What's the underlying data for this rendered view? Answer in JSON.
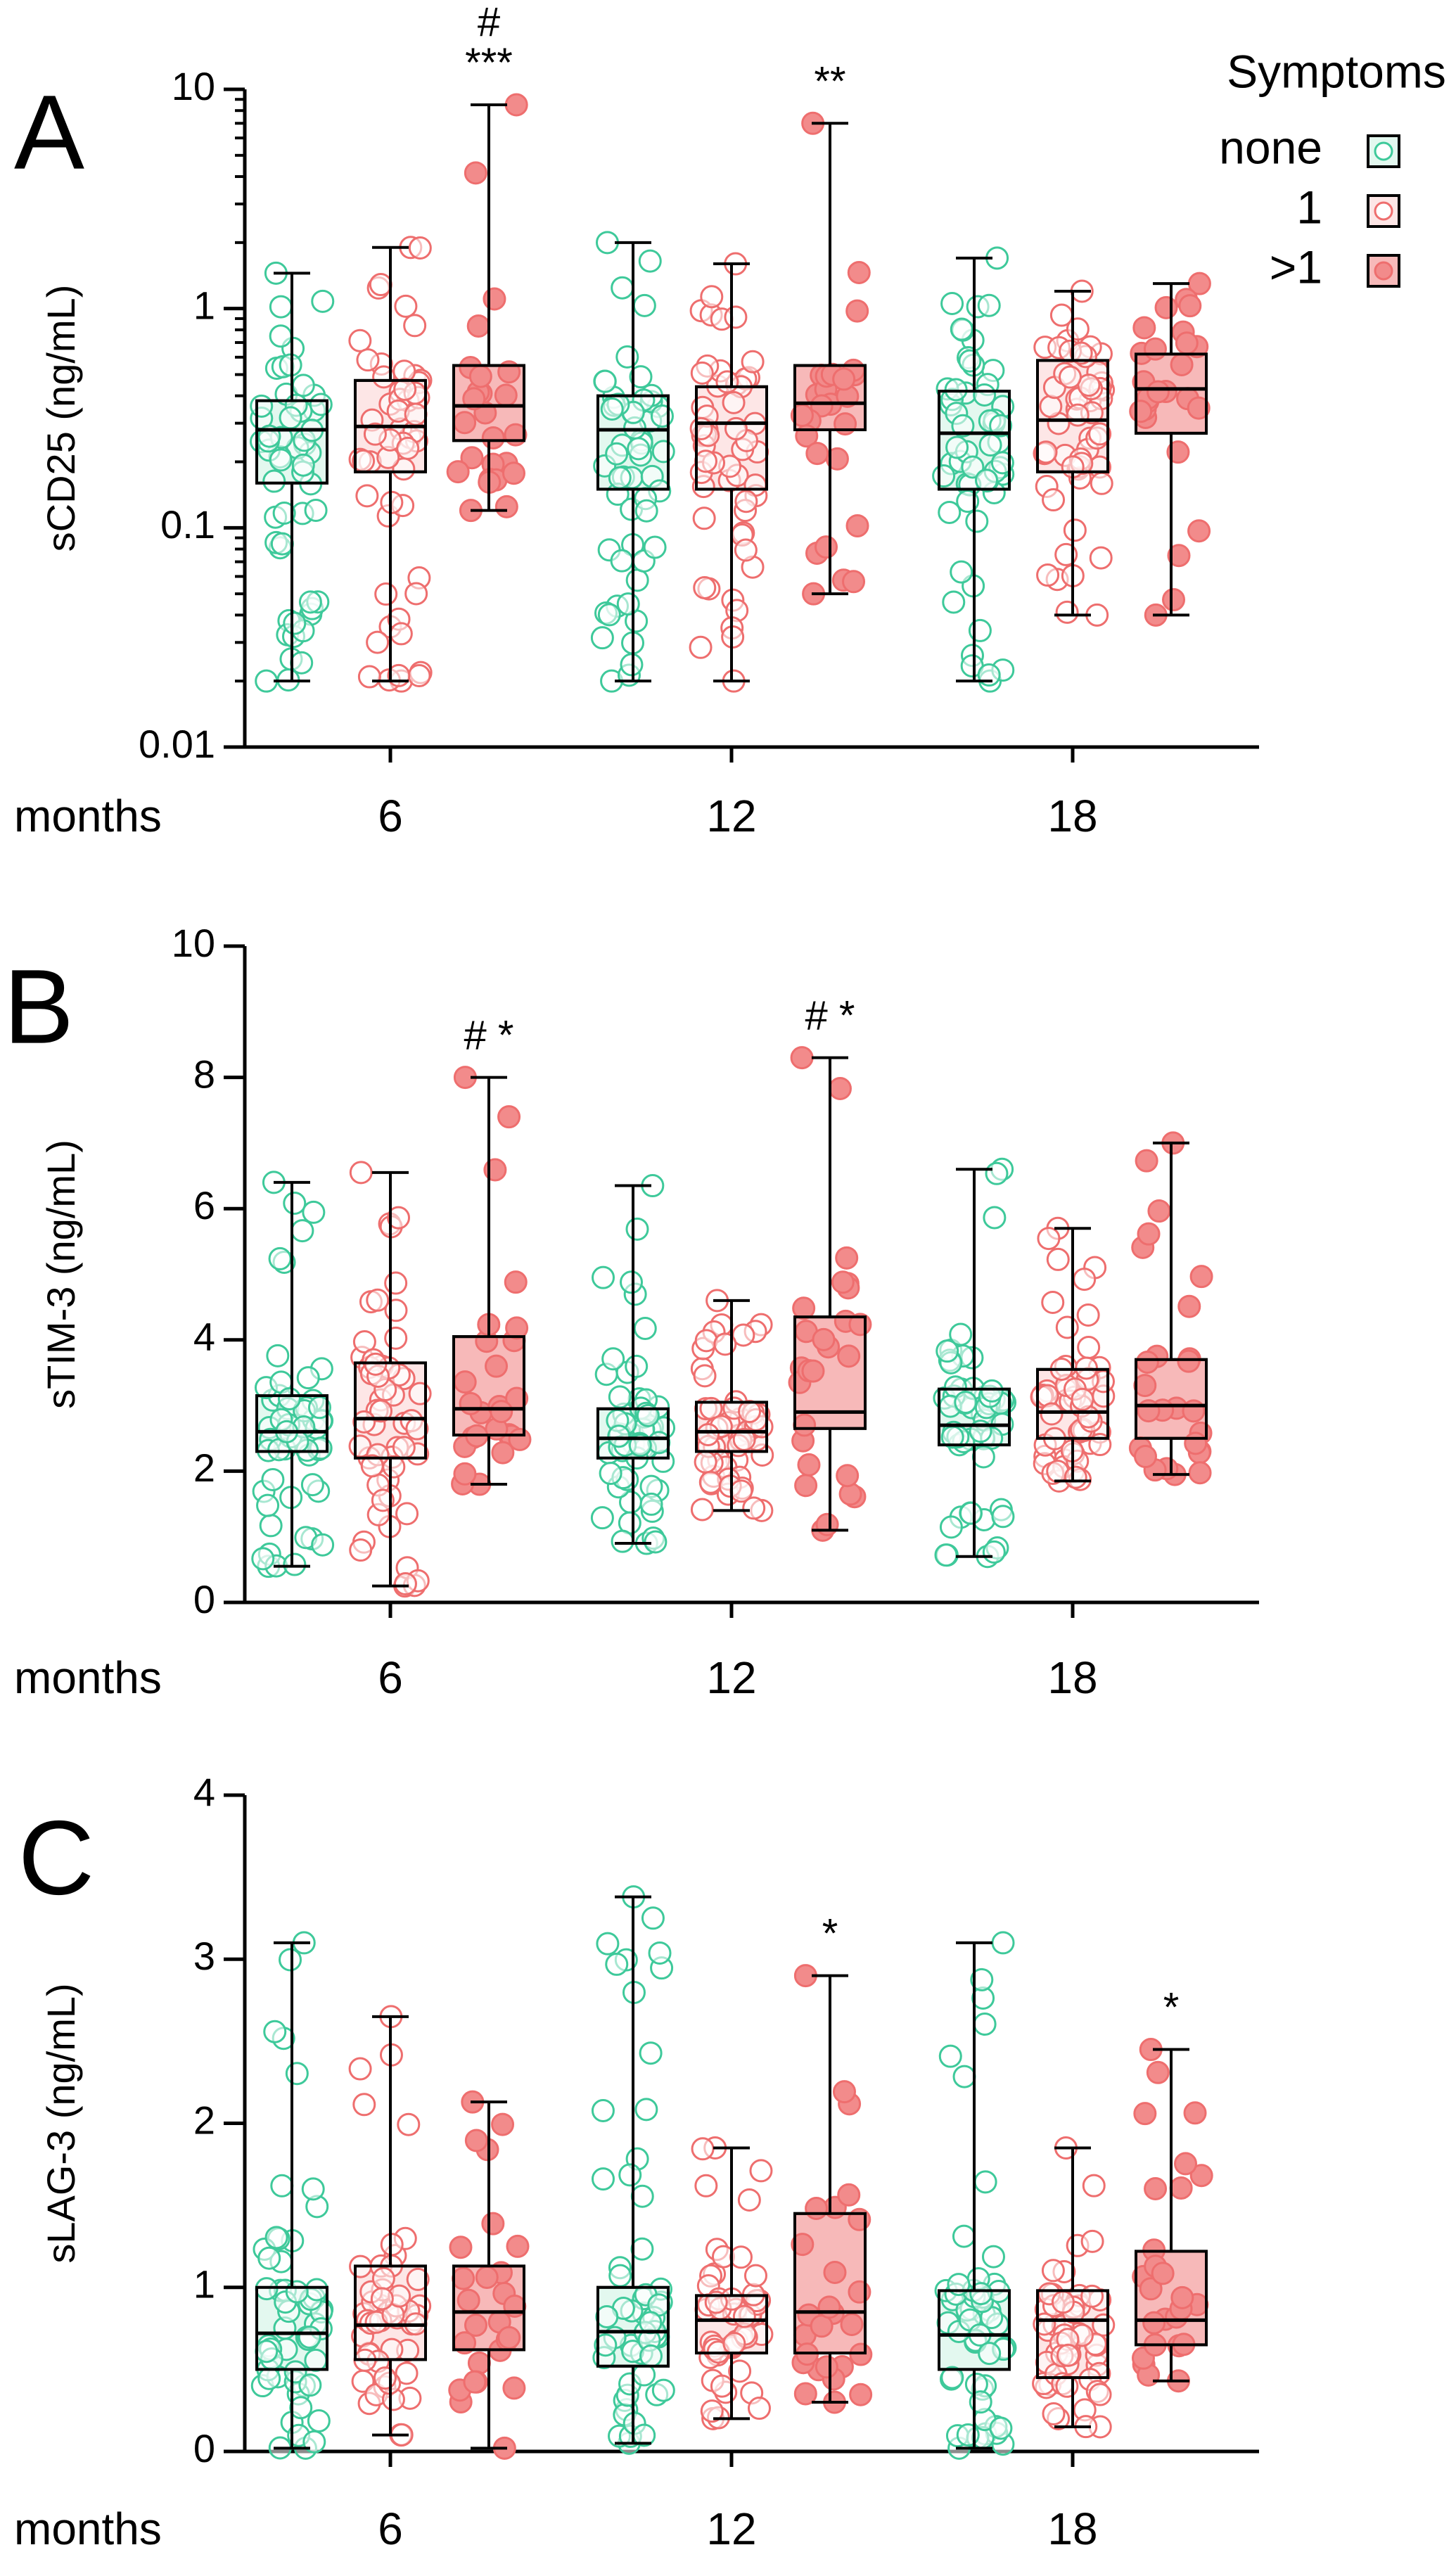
{
  "colors": {
    "none": "#3ec99a",
    "none_fill": "#e3f8ef",
    "one": "#ee6e6e",
    "one_fill": "#fde6e6",
    "many": "#ee6e6e",
    "many_fill": "#f7b9b9",
    "many_dot": "#f28b8b",
    "axis": "#000000"
  },
  "legend": {
    "title": "Symptoms",
    "entries": [
      {
        "key": "none",
        "label": "none",
        "style": "open"
      },
      {
        "key": "one",
        "label": "1",
        "style": "open"
      },
      {
        "key": "many",
        "label": ">1",
        "style": "filled"
      }
    ]
  },
  "chart_data": [
    {
      "type": "box",
      "panel_label": "A",
      "ylabel": "sCD25 (ng/mL)",
      "xlabel": "months",
      "scale": "log",
      "ylim": [
        0.01,
        10
      ],
      "yticks": [
        0.01,
        0.1,
        1,
        10
      ],
      "ytick_labels": [
        "0.01",
        "0.1",
        "1",
        "10"
      ],
      "categories": [
        "6",
        "12",
        "18"
      ],
      "series": [
        {
          "name": "none",
          "boxes": [
            {
              "min": 0.02,
              "q1": 0.16,
              "median": 0.28,
              "q3": 0.38,
              "max": 1.45
            },
            {
              "min": 0.02,
              "q1": 0.15,
              "median": 0.28,
              "q3": 0.4,
              "max": 2.0
            },
            {
              "min": 0.02,
              "q1": 0.15,
              "median": 0.27,
              "q3": 0.42,
              "max": 1.7
            }
          ]
        },
        {
          "name": "1",
          "boxes": [
            {
              "min": 0.02,
              "q1": 0.18,
              "median": 0.29,
              "q3": 0.47,
              "max": 1.9
            },
            {
              "min": 0.02,
              "q1": 0.15,
              "median": 0.3,
              "q3": 0.44,
              "max": 1.6
            },
            {
              "min": 0.04,
              "q1": 0.18,
              "median": 0.31,
              "q3": 0.58,
              "max": 1.2
            }
          ]
        },
        {
          "name": ">1",
          "boxes": [
            {
              "min": 0.12,
              "q1": 0.25,
              "median": 0.36,
              "q3": 0.55,
              "max": 8.5
            },
            {
              "min": 0.05,
              "q1": 0.28,
              "median": 0.37,
              "q3": 0.55,
              "max": 7.0
            },
            {
              "min": 0.04,
              "q1": 0.27,
              "median": 0.43,
              "q3": 0.62,
              "max": 1.3
            }
          ]
        }
      ],
      "annotations": [
        {
          "category": "6",
          "series": ">1",
          "lines": [
            "#",
            "***"
          ]
        },
        {
          "category": "12",
          "series": ">1",
          "lines": [
            "**"
          ]
        }
      ]
    },
    {
      "type": "box",
      "panel_label": "B",
      "ylabel": "sTIM-3 (ng/mL)",
      "xlabel": "months",
      "scale": "linear",
      "ylim": [
        0,
        10
      ],
      "yticks": [
        0,
        2,
        4,
        6,
        8,
        10
      ],
      "ytick_labels": [
        "0",
        "2",
        "4",
        "6",
        "8",
        "10"
      ],
      "categories": [
        "6",
        "12",
        "18"
      ],
      "series": [
        {
          "name": "none",
          "boxes": [
            {
              "min": 0.55,
              "q1": 2.3,
              "median": 2.6,
              "q3": 3.15,
              "max": 6.4
            },
            {
              "min": 0.9,
              "q1": 2.2,
              "median": 2.5,
              "q3": 2.95,
              "max": 6.35
            },
            {
              "min": 0.7,
              "q1": 2.4,
              "median": 2.7,
              "q3": 3.25,
              "max": 6.6
            }
          ]
        },
        {
          "name": "1",
          "boxes": [
            {
              "min": 0.25,
              "q1": 2.2,
              "median": 2.8,
              "q3": 3.65,
              "max": 6.55
            },
            {
              "min": 1.4,
              "q1": 2.3,
              "median": 2.6,
              "q3": 3.05,
              "max": 4.6
            },
            {
              "min": 1.85,
              "q1": 2.5,
              "median": 2.9,
              "q3": 3.55,
              "max": 5.7
            }
          ]
        },
        {
          "name": ">1",
          "boxes": [
            {
              "min": 1.8,
              "q1": 2.55,
              "median": 2.95,
              "q3": 4.05,
              "max": 8.0
            },
            {
              "min": 1.1,
              "q1": 2.65,
              "median": 2.9,
              "q3": 4.35,
              "max": 8.3
            },
            {
              "min": 1.95,
              "q1": 2.5,
              "median": 3.0,
              "q3": 3.7,
              "max": 7.0
            }
          ]
        }
      ],
      "annotations": [
        {
          "category": "6",
          "series": ">1",
          "lines": [
            "# *"
          ]
        },
        {
          "category": "12",
          "series": ">1",
          "lines": [
            "# *"
          ]
        }
      ]
    },
    {
      "type": "box",
      "panel_label": "C",
      "ylabel": "sLAG-3 (ng/mL)",
      "xlabel": "months",
      "scale": "linear",
      "ylim": [
        0,
        4
      ],
      "yticks": [
        0,
        1,
        2,
        3,
        4
      ],
      "ytick_labels": [
        "0",
        "1",
        "2",
        "3",
        "4"
      ],
      "categories": [
        "6",
        "12",
        "18"
      ],
      "series": [
        {
          "name": "none",
          "boxes": [
            {
              "min": 0.02,
              "q1": 0.5,
              "median": 0.72,
              "q3": 1.0,
              "max": 3.1
            },
            {
              "min": 0.05,
              "q1": 0.52,
              "median": 0.73,
              "q3": 1.0,
              "max": 3.38
            },
            {
              "min": 0.02,
              "q1": 0.5,
              "median": 0.71,
              "q3": 0.98,
              "max": 3.1
            }
          ]
        },
        {
          "name": "1",
          "boxes": [
            {
              "min": 0.1,
              "q1": 0.56,
              "median": 0.77,
              "q3": 1.13,
              "max": 2.65
            },
            {
              "min": 0.2,
              "q1": 0.6,
              "median": 0.8,
              "q3": 0.95,
              "max": 1.85
            },
            {
              "min": 0.15,
              "q1": 0.45,
              "median": 0.8,
              "q3": 0.98,
              "max": 1.85
            }
          ]
        },
        {
          "name": ">1",
          "boxes": [
            {
              "min": 0.02,
              "q1": 0.62,
              "median": 0.85,
              "q3": 1.13,
              "max": 2.13
            },
            {
              "min": 0.3,
              "q1": 0.6,
              "median": 0.85,
              "q3": 1.45,
              "max": 2.9
            },
            {
              "min": 0.43,
              "q1": 0.65,
              "median": 0.8,
              "q3": 1.22,
              "max": 2.45
            }
          ]
        }
      ],
      "annotations": [
        {
          "category": "12",
          "series": ">1",
          "lines": [
            "*"
          ]
        },
        {
          "category": "18",
          "series": ">1",
          "lines": [
            "*"
          ]
        }
      ]
    }
  ]
}
